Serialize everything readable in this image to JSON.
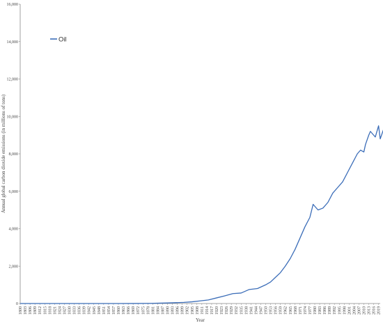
{
  "chart_data": {
    "type": "line",
    "title": "",
    "xlabel": "Year",
    "ylabel": "Annual global carbon dioxide emissions  (in millions of tons)",
    "xlim": [
      1800,
      2020
    ],
    "ylim": [
      0,
      16000
    ],
    "yticks": [
      "0",
      "2,000",
      "4,000",
      "6,000",
      "8,000",
      "10,000",
      "12,000",
      "14,000",
      "16,000"
    ],
    "xtick_step": 3,
    "grid": false,
    "legend": "top-left",
    "series": [
      {
        "name": "Oil",
        "color": "#3b6db8",
        "points": [
          [
            1800,
            0
          ],
          [
            1860,
            0
          ],
          [
            1870,
            2
          ],
          [
            1880,
            10
          ],
          [
            1890,
            30
          ],
          [
            1900,
            60
          ],
          [
            1905,
            90
          ],
          [
            1910,
            140
          ],
          [
            1915,
            190
          ],
          [
            1920,
            300
          ],
          [
            1925,
            410
          ],
          [
            1930,
            530
          ],
          [
            1935,
            560
          ],
          [
            1940,
            750
          ],
          [
            1945,
            800
          ],
          [
            1950,
            1000
          ],
          [
            1953,
            1150
          ],
          [
            1956,
            1400
          ],
          [
            1959,
            1650
          ],
          [
            1962,
            2000
          ],
          [
            1965,
            2400
          ],
          [
            1968,
            2900
          ],
          [
            1971,
            3500
          ],
          [
            1974,
            4100
          ],
          [
            1977,
            4600
          ],
          [
            1979,
            5300
          ],
          [
            1980,
            5200
          ],
          [
            1982,
            5000
          ],
          [
            1985,
            5100
          ],
          [
            1988,
            5400
          ],
          [
            1991,
            5900
          ],
          [
            1994,
            6200
          ],
          [
            1997,
            6500
          ],
          [
            2000,
            7000
          ],
          [
            2003,
            7500
          ],
          [
            2006,
            8000
          ],
          [
            2008,
            8200
          ],
          [
            2010,
            8100
          ],
          [
            2011,
            8500
          ],
          [
            2013,
            9000
          ],
          [
            2014,
            9200
          ],
          [
            2016,
            9000
          ],
          [
            2017,
            8900
          ],
          [
            2019,
            9500
          ],
          [
            2020,
            8800
          ],
          [
            2022,
            9300
          ],
          [
            2024,
            9200
          ],
          [
            2026,
            9400
          ]
        ]
      }
    ]
  }
}
